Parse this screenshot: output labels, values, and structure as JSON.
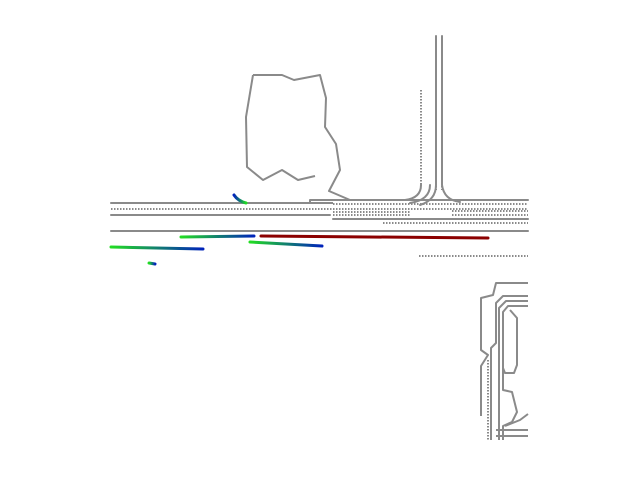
{
  "map": {
    "background": "#ffffff",
    "lane_color": "#8a8a8a",
    "trajectory_gradient": [
      "#22dd22",
      "#0022bb"
    ],
    "ego_trajectory_color": "#8b0000"
  }
}
